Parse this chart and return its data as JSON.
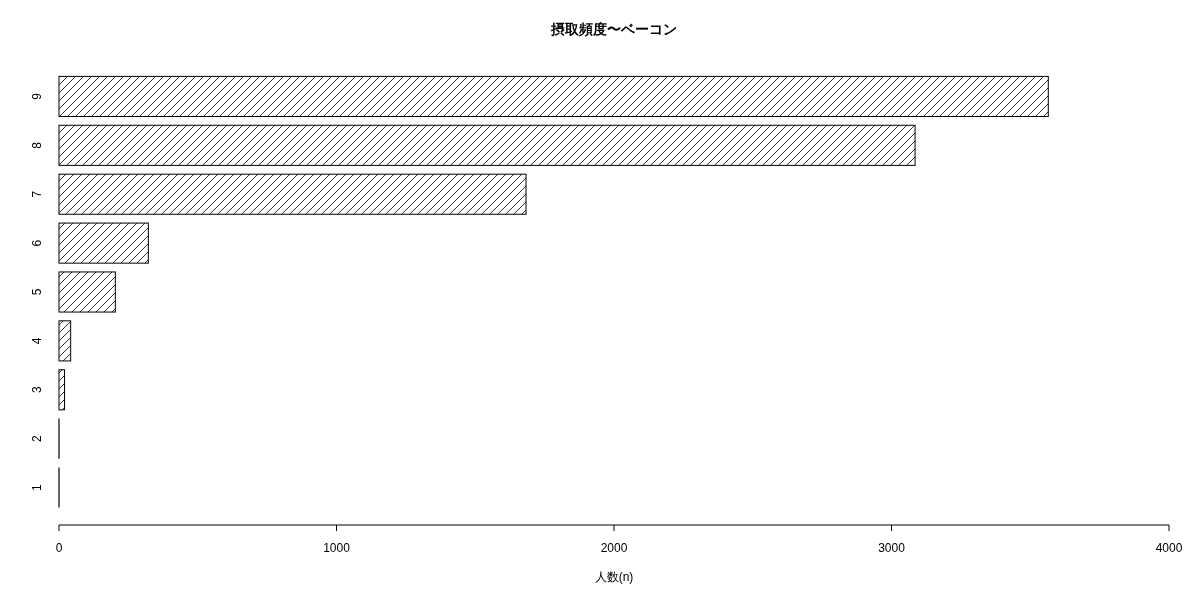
{
  "chart_data": {
    "type": "bar",
    "orientation": "horizontal",
    "title": "摂取頻度〜ベーコン",
    "xlabel": "人数(n)",
    "categories": [
      "9",
      "8",
      "7",
      "6",
      "5",
      "4",
      "3",
      "2",
      "1"
    ],
    "values": [
      3565,
      3085,
      1683,
      322,
      203,
      42,
      20,
      0,
      0
    ],
    "xlim": [
      0,
      4000
    ],
    "xticks": [
      0,
      1000,
      2000,
      3000,
      4000
    ],
    "grid": false
  }
}
